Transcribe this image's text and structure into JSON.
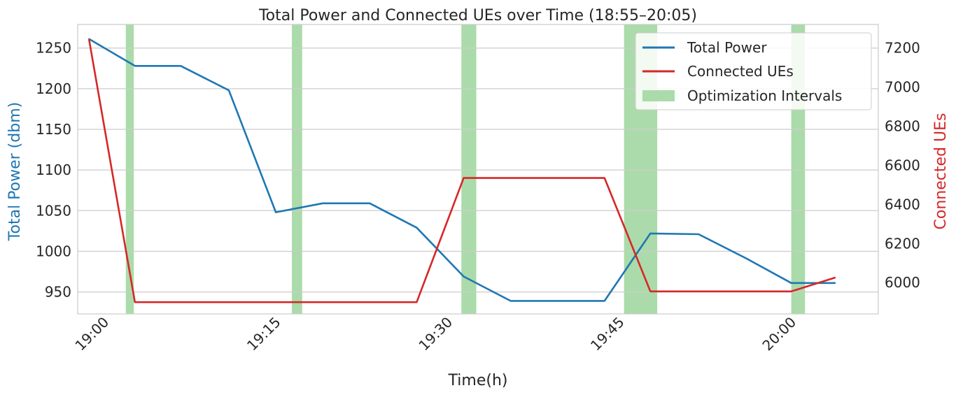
{
  "chart_data": {
    "type": "line",
    "title": "Total Power and Connected UEs over Time (18:55–20:05)",
    "xlabel": "Time(h)",
    "ylabel_left": "Total Power (dbm)",
    "ylabel_right": "Connected UEs",
    "x_tick_labels": [
      "19:00",
      "19:15",
      "19:30",
      "19:45",
      "20:00"
    ],
    "x_tick_minutes": [
      1140,
      1155,
      1170,
      1185,
      1200
    ],
    "x_range_minutes": [
      1137.7,
      1207.6
    ],
    "ylim_left": [
      923,
      1279
    ],
    "ylim_right": [
      5840,
      7320
    ],
    "yticks_left": [
      950,
      1000,
      1050,
      1100,
      1150,
      1200,
      1250
    ],
    "yticks_right": [
      6000,
      6200,
      6400,
      6600,
      6800,
      7000,
      7200
    ],
    "grid": true,
    "legend_position": "top-right",
    "colors": {
      "total_power": "#1f77b4",
      "connected_ues": "#d62728",
      "optimization": "#abdbaa",
      "left_label": "#1f77b4",
      "right_label": "#d62728"
    },
    "series": [
      {
        "name": "Total Power",
        "axis": "left",
        "x_minutes": [
          1138.7,
          1142.7,
          1146.7,
          1150.9,
          1155.0,
          1159.1,
          1163.2,
          1167.3,
          1171.4,
          1175.5,
          1179.6,
          1183.7,
          1187.7,
          1191.9,
          1196.1,
          1200.0,
          1203.8
        ],
        "values": [
          1261,
          1228,
          1228,
          1198,
          1048,
          1059,
          1059,
          1029,
          969,
          939,
          939,
          939,
          1022,
          1021,
          991,
          961,
          961
        ]
      },
      {
        "name": "Connected UEs",
        "axis": "right",
        "x_minutes": [
          1138.7,
          1142.7,
          1155.0,
          1167.3,
          1171.4,
          1183.7,
          1187.7,
          1200.0,
          1203.8
        ],
        "values": [
          7240,
          5900,
          5900,
          5900,
          6535,
          6535,
          5955,
          5955,
          6025
        ]
      }
    ],
    "optimization_intervals": {
      "name": "Optimization Intervals",
      "ranges_minutes": [
        [
          1141.9,
          1142.6
        ],
        [
          1156.4,
          1157.3
        ],
        [
          1171.2,
          1172.5
        ],
        [
          1185.4,
          1188.3
        ],
        [
          1200.0,
          1201.2
        ]
      ]
    }
  }
}
